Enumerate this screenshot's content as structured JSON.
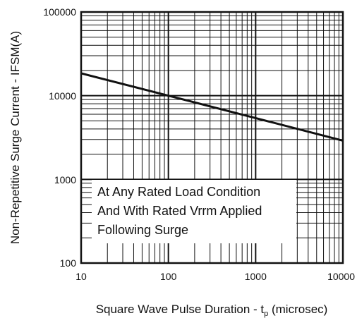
{
  "chart_data": {
    "type": "line",
    "title": "",
    "x_scale": "log",
    "y_scale": "log",
    "xlim": [
      10,
      10000
    ],
    "ylim": [
      100,
      100000
    ],
    "x_ticks": [
      10,
      100,
      1000,
      10000
    ],
    "y_ticks": [
      100,
      1000,
      10000,
      100000
    ],
    "x_tick_labels": [
      "10",
      "100",
      "1000",
      "10000"
    ],
    "y_tick_labels": [
      "100",
      "1000",
      "10000",
      "100000"
    ],
    "grid": true,
    "xlabel": {
      "main": "Square Wave Pulse Duration - t",
      "subscript": "p",
      "suffix": " (microsec)"
    },
    "ylabel": "Non-Repetitive Surge Current - IFSM(A)",
    "series": [
      {
        "x": [
          10,
          100,
          1000,
          10000
        ],
        "values": [
          18500,
          10000,
          5400,
          2900
        ]
      }
    ],
    "annotation": [
      "At Any Rated Load Condition",
      "And With Rated Vrrm Applied",
      "Following Surge"
    ],
    "colors": {
      "line": "#111111",
      "grid": "#111111",
      "background": "#ffffff"
    }
  }
}
